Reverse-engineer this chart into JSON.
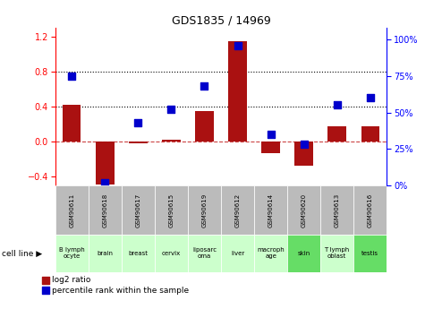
{
  "title": "GDS1835 / 14969",
  "gsm_labels": [
    "GSM90611",
    "GSM90618",
    "GSM90617",
    "GSM90615",
    "GSM90619",
    "GSM90612",
    "GSM90614",
    "GSM90620",
    "GSM90613",
    "GSM90616"
  ],
  "cell_lines": [
    "B lymph\nocyte",
    "brain",
    "breast",
    "cervix",
    "liposarc\noma",
    "liver",
    "macroph\nage",
    "skin",
    "T lymph\noblast",
    "testis"
  ],
  "cell_line_colors": [
    "#ccffcc",
    "#ccffcc",
    "#ccffcc",
    "#ccffcc",
    "#ccffcc",
    "#ccffcc",
    "#ccffcc",
    "#66dd66",
    "#ccffcc",
    "#66dd66"
  ],
  "log2_ratio": [
    0.42,
    -0.49,
    -0.02,
    0.02,
    0.35,
    1.15,
    -0.13,
    -0.27,
    0.18,
    0.18
  ],
  "percentile_rank": [
    75,
    2,
    43,
    52,
    68,
    96,
    35,
    28,
    55,
    60
  ],
  "ylim_left": [
    -0.5,
    1.3
  ],
  "ylim_right": [
    0,
    108.0
  ],
  "yticks_left": [
    -0.4,
    0.0,
    0.4,
    0.8,
    1.2
  ],
  "yticks_right": [
    0,
    25,
    50,
    75,
    100
  ],
  "bar_color": "#aa1111",
  "dot_color": "#0000cc",
  "bar_width": 0.55,
  "dot_size": 35,
  "gsm_bg_color": "#bbbbbb",
  "legend_red": "log2 ratio",
  "legend_blue": "percentile rank within the sample"
}
